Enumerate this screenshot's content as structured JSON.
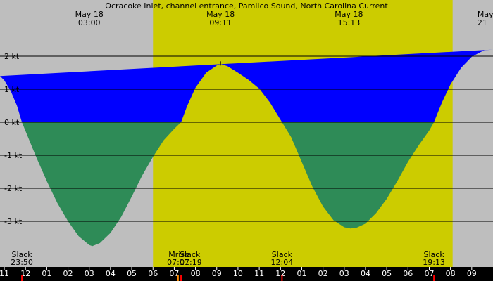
{
  "chart_data": {
    "type": "area",
    "title": "Ocracoke Inlet, channel entrance, Pamlico Sound, North Carolina Current",
    "x_unit": "hours",
    "xlim": [
      22.8,
      46.0
    ],
    "ylim": [
      -4.0,
      3.0
    ],
    "y_ticks": [
      {
        "value": 2,
        "label": "2 kt"
      },
      {
        "value": 1,
        "label": "1 kt"
      },
      {
        "value": 0,
        "label": "0 kt"
      },
      {
        "value": -1,
        "label": "-1 kt"
      },
      {
        "value": -2,
        "label": "-2 kt"
      },
      {
        "value": -3,
        "label": "-3 kt"
      }
    ],
    "x_ticks": [
      {
        "value": 23,
        "label": "11"
      },
      {
        "value": 24,
        "label": "12"
      },
      {
        "value": 25,
        "label": "01"
      },
      {
        "value": 26,
        "label": "02"
      },
      {
        "value": 27,
        "label": "03"
      },
      {
        "value": 28,
        "label": "04"
      },
      {
        "value": 29,
        "label": "05"
      },
      {
        "value": 30,
        "label": "06"
      },
      {
        "value": 31,
        "label": "07"
      },
      {
        "value": 32,
        "label": "08"
      },
      {
        "value": 33,
        "label": "09"
      },
      {
        "value": 34,
        "label": "10"
      },
      {
        "value": 35,
        "label": "11"
      },
      {
        "value": 36,
        "label": "12"
      },
      {
        "value": 37,
        "label": "01"
      },
      {
        "value": 38,
        "label": "02"
      },
      {
        "value": 39,
        "label": "03"
      },
      {
        "value": 40,
        "label": "04"
      },
      {
        "value": 41,
        "label": "05"
      },
      {
        "value": 42,
        "label": "06"
      },
      {
        "value": 43,
        "label": "07"
      },
      {
        "value": 44,
        "label": "08"
      },
      {
        "value": 45,
        "label": "09"
      }
    ],
    "daylight": {
      "start": 30.0,
      "end": 44.1
    },
    "series": [
      {
        "kind": "flood",
        "color": "#0000ff",
        "points": [
          [
            22.8,
            1.4
          ],
          [
            23.0,
            1.27
          ],
          [
            23.3,
            0.95
          ],
          [
            23.6,
            0.5
          ],
          [
            23.83,
            0
          ],
          [
            31.32,
            0
          ],
          [
            31.6,
            0.48
          ],
          [
            32.0,
            1.05
          ],
          [
            32.5,
            1.5
          ],
          [
            33.0,
            1.72
          ],
          [
            33.18,
            1.76
          ],
          [
            33.5,
            1.7
          ],
          [
            34.0,
            1.5
          ],
          [
            34.5,
            1.28
          ],
          [
            35.0,
            1.02
          ],
          [
            35.5,
            0.6
          ],
          [
            36.07,
            0
          ],
          [
            43.22,
            0
          ],
          [
            43.6,
            0.6
          ],
          [
            44.0,
            1.15
          ],
          [
            44.5,
            1.65
          ],
          [
            45.0,
            1.98
          ],
          [
            45.4,
            2.12
          ],
          [
            45.6,
            2.18
          ],
          [
            46.0,
            2.2
          ]
        ]
      },
      {
        "kind": "ebb",
        "color": "#2e8b57",
        "points": [
          [
            23.83,
            0
          ],
          [
            24.5,
            -1.05
          ],
          [
            25.0,
            -1.78
          ],
          [
            25.5,
            -2.45
          ],
          [
            26.0,
            -3.0
          ],
          [
            26.5,
            -3.45
          ],
          [
            27.0,
            -3.72
          ],
          [
            27.15,
            -3.75
          ],
          [
            27.5,
            -3.66
          ],
          [
            28.0,
            -3.35
          ],
          [
            28.5,
            -2.87
          ],
          [
            29.0,
            -2.25
          ],
          [
            29.5,
            -1.6
          ],
          [
            30.0,
            -1.05
          ],
          [
            30.5,
            -0.55
          ],
          [
            31.0,
            -0.2
          ],
          [
            31.32,
            0
          ],
          [
            36.07,
            0
          ],
          [
            36.5,
            -0.45
          ],
          [
            37.0,
            -1.2
          ],
          [
            37.5,
            -1.95
          ],
          [
            38.0,
            -2.55
          ],
          [
            38.5,
            -2.97
          ],
          [
            39.0,
            -3.18
          ],
          [
            39.3,
            -3.22
          ],
          [
            39.6,
            -3.19
          ],
          [
            40.0,
            -3.07
          ],
          [
            40.5,
            -2.75
          ],
          [
            41.0,
            -2.32
          ],
          [
            41.5,
            -1.78
          ],
          [
            42.0,
            -1.2
          ],
          [
            42.5,
            -0.7
          ],
          [
            43.0,
            -0.25
          ],
          [
            43.22,
            0
          ]
        ]
      }
    ],
    "header_labels": [
      {
        "x": 27.0,
        "date": "May 18",
        "time": "03:00"
      },
      {
        "x": 33.18,
        "date": "May 18",
        "time": "09:11"
      },
      {
        "x": 39.22,
        "date": "May 18",
        "time": "15:13"
      },
      {
        "x": 45.6,
        "date": "May",
        "time": "21"
      }
    ],
    "events": [
      {
        "x": 23.83,
        "name": "Slack",
        "time": "23:50"
      },
      {
        "x": 31.18,
        "name": "Mrise",
        "time": "07:11"
      },
      {
        "x": 31.32,
        "name": "Slack",
        "time": "07:19"
      },
      {
        "x": 36.07,
        "name": "Slack",
        "time": "12:04"
      },
      {
        "x": 43.22,
        "name": "Slack",
        "time": "19:13"
      }
    ],
    "colors": {
      "background": "#bebebe",
      "daylight": "#cccc00",
      "gridline": "#000000",
      "axis_background": "#000000",
      "hour_text": "#ffffff"
    }
  }
}
